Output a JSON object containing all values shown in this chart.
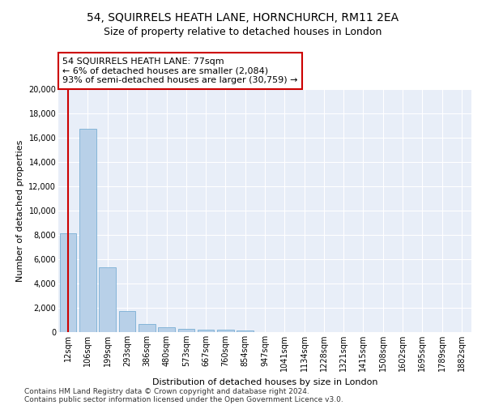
{
  "title_line1": "54, SQUIRRELS HEATH LANE, HORNCHURCH, RM11 2EA",
  "title_line2": "Size of property relative to detached houses in London",
  "xlabel": "Distribution of detached houses by size in London",
  "ylabel": "Number of detached properties",
  "categories": [
    "12sqm",
    "106sqm",
    "199sqm",
    "293sqm",
    "386sqm",
    "480sqm",
    "573sqm",
    "667sqm",
    "760sqm",
    "854sqm",
    "947sqm",
    "1041sqm",
    "1134sqm",
    "1228sqm",
    "1321sqm",
    "1415sqm",
    "1508sqm",
    "1602sqm",
    "1695sqm",
    "1789sqm",
    "1882sqm"
  ],
  "values": [
    8150,
    16700,
    5350,
    1750,
    700,
    380,
    300,
    230,
    190,
    160,
    0,
    0,
    0,
    0,
    0,
    0,
    0,
    0,
    0,
    0,
    0
  ],
  "bar_color": "#b8d0e8",
  "bar_edgecolor": "#7aafd4",
  "vline_x": 0,
  "vline_color": "#cc0000",
  "annotation_text": "54 SQUIRRELS HEATH LANE: 77sqm\n← 6% of detached houses are smaller (2,084)\n93% of semi-detached houses are larger (30,759) →",
  "annotation_box_color": "#ffffff",
  "annotation_box_edgecolor": "#cc0000",
  "ylim": [
    0,
    20000
  ],
  "yticks": [
    0,
    2000,
    4000,
    6000,
    8000,
    10000,
    12000,
    14000,
    16000,
    18000,
    20000
  ],
  "background_color": "#e8eef8",
  "grid_color": "#d0d8e8",
  "footer_line1": "Contains HM Land Registry data © Crown copyright and database right 2024.",
  "footer_line2": "Contains public sector information licensed under the Open Government Licence v3.0.",
  "title_fontsize": 10,
  "subtitle_fontsize": 9,
  "axis_label_fontsize": 8,
  "tick_fontsize": 7,
  "annotation_fontsize": 8,
  "footer_fontsize": 6.5
}
